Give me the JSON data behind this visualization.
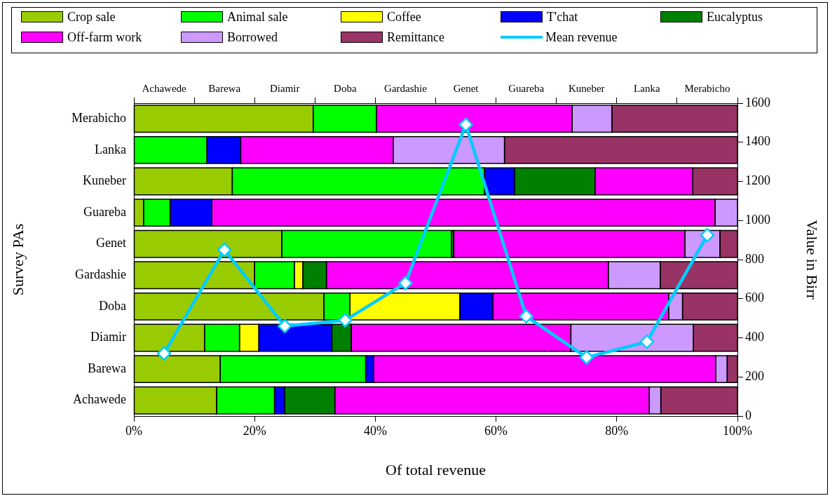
{
  "chart_data": [
    {
      "type": "bar",
      "orientation": "horizontal",
      "stacked": true,
      "categories": [
        "Merabicho",
        "Lanka",
        "Kuneber",
        "Guareba",
        "Genet",
        "Gardashie",
        "Doba",
        "Diamir",
        "Barewa",
        "Achawede"
      ],
      "series": [
        {
          "name": "Crop sale",
          "color": "#99cc00",
          "values": [
            29.7,
            0,
            16.3,
            1.6,
            24.5,
            20.0,
            31.5,
            11.7,
            14.3,
            13.7
          ]
        },
        {
          "name": "Animal sale",
          "color": "#00ff00",
          "values": [
            10.5,
            12.1,
            41.8,
            4.4,
            28.1,
            6.6,
            4.3,
            5.8,
            24.1,
            9.6
          ]
        },
        {
          "name": "Coffee",
          "color": "#ffff00",
          "values": [
            0,
            0,
            0,
            0,
            0,
            1.4,
            18.2,
            3.2,
            0,
            0
          ]
        },
        {
          "name": "T'chat",
          "color": "#0000ff",
          "values": [
            0,
            5.6,
            5.0,
            6.9,
            0,
            0,
            5.5,
            12.1,
            1.3,
            1.7
          ]
        },
        {
          "name": "Eucalyptus",
          "color": "#008000",
          "values": [
            0,
            0,
            13.3,
            0,
            0.4,
            3.9,
            0,
            3.2,
            0,
            8.3
          ]
        },
        {
          "name": "Off-farm work",
          "color": "#ff00ff",
          "values": [
            32.4,
            25.3,
            16.2,
            83.4,
            38.3,
            46.7,
            29.1,
            36.4,
            56.7,
            52.1
          ]
        },
        {
          "name": "Borrowed",
          "color": "#cc99ff",
          "values": [
            6.6,
            18.4,
            0,
            3.7,
            5.8,
            8.6,
            2.3,
            20.3,
            1.9,
            1.9
          ]
        },
        {
          "name": "Remittance",
          "color": "#993366",
          "values": [
            20.8,
            38.6,
            7.4,
            0,
            2.9,
            12.8,
            9.1,
            7.3,
            1.7,
            12.7
          ]
        }
      ],
      "xlabel": "Of total revenue",
      "ylabel": "Survey PAs",
      "xlim": [
        0,
        100
      ],
      "xticks": [
        {
          "value": 0,
          "label": "0%"
        },
        {
          "value": 20,
          "label": "20%"
        },
        {
          "value": 40,
          "label": "40%"
        },
        {
          "value": 60,
          "label": "60%"
        },
        {
          "value": 80,
          "label": "80%"
        },
        {
          "value": 100,
          "label": "100%"
        }
      ],
      "legend": "top"
    },
    {
      "type": "line",
      "marker": "diamond",
      "categories": [
        "Achawede",
        "Barewa",
        "Diamir",
        "Doba",
        "Gardashie",
        "Genet",
        "Guareba",
        "Kuneber",
        "Lanka",
        "Merabicho"
      ],
      "series": [
        {
          "name": "Mean revenue",
          "color": "#00ccff",
          "values": [
            320,
            850,
            460,
            490,
            680,
            1490,
            510,
            300,
            380,
            925
          ]
        }
      ],
      "ylabel": "Value in Birr",
      "ylim": [
        0,
        1600
      ],
      "yticks": [
        0,
        200,
        400,
        600,
        800,
        1000,
        1200,
        1400,
        1600
      ],
      "legend": "top"
    }
  ]
}
